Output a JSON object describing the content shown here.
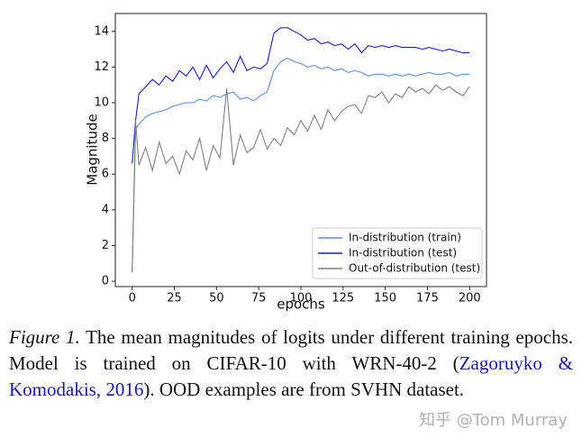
{
  "chart_data": {
    "type": "line",
    "xlabel": "epochs",
    "ylabel": "Magnitude",
    "x": [
      0,
      2,
      4,
      8,
      12,
      16,
      20,
      24,
      28,
      32,
      36,
      40,
      44,
      48,
      52,
      56,
      60,
      64,
      68,
      72,
      76,
      80,
      84,
      88,
      92,
      96,
      100,
      104,
      108,
      112,
      116,
      120,
      124,
      128,
      132,
      136,
      140,
      144,
      148,
      152,
      156,
      160,
      164,
      168,
      172,
      176,
      180,
      184,
      188,
      192,
      196,
      200
    ],
    "series": [
      {
        "name": "In-distribution (train)",
        "color": "#5b8fd8",
        "values": [
          0.5,
          8.5,
          8.8,
          9.2,
          9.4,
          9.5,
          9.6,
          9.8,
          9.9,
          10.0,
          10.0,
          10.2,
          10.1,
          10.4,
          10.3,
          10.5,
          10.6,
          10.2,
          10.3,
          10.1,
          10.4,
          10.6,
          11.8,
          12.3,
          12.5,
          12.3,
          12.2,
          12.0,
          12.1,
          11.9,
          12.0,
          11.8,
          11.9,
          11.7,
          11.8,
          11.7,
          11.5,
          11.6,
          11.6,
          11.5,
          11.6,
          11.5,
          11.6,
          11.5,
          11.6,
          11.7,
          11.6,
          11.6,
          11.7,
          11.5,
          11.6,
          11.6
        ]
      },
      {
        "name": "In-distribution (test)",
        "color": "#1c1cc8",
        "values": [
          6.6,
          9.0,
          10.5,
          10.9,
          11.3,
          11.0,
          11.5,
          11.2,
          11.8,
          11.5,
          12.0,
          11.3,
          12.1,
          11.4,
          11.9,
          12.3,
          11.7,
          12.6,
          11.8,
          12.0,
          11.9,
          12.2,
          13.9,
          14.2,
          14.2,
          14.0,
          13.8,
          13.5,
          13.6,
          13.3,
          13.4,
          13.2,
          13.3,
          13.0,
          13.3,
          12.8,
          13.2,
          13.1,
          13.2,
          13.1,
          13.2,
          13.1,
          13.1,
          13.1,
          13.0,
          13.1,
          13.0,
          12.9,
          13.0,
          12.9,
          12.8,
          12.8
        ]
      },
      {
        "name": "Out-of-distribution (test)",
        "color": "#808080",
        "values": [
          0.5,
          9.0,
          6.5,
          7.5,
          6.2,
          7.8,
          6.6,
          7.0,
          6.0,
          7.3,
          6.8,
          8.0,
          6.2,
          7.6,
          6.9,
          10.8,
          6.5,
          8.2,
          7.2,
          7.5,
          8.5,
          7.4,
          8.0,
          7.6,
          8.6,
          8.2,
          9.0,
          8.4,
          9.3,
          8.5,
          9.6,
          9.0,
          9.5,
          9.8,
          9.9,
          9.4,
          10.4,
          10.3,
          10.6,
          10.0,
          10.5,
          10.3,
          10.9,
          10.6,
          10.8,
          10.5,
          11.0,
          10.7,
          10.9,
          10.6,
          10.4,
          10.9
        ]
      }
    ],
    "xlim": [
      -10,
      210
    ],
    "ylim": [
      -0.3,
      15
    ],
    "xticks": [
      0,
      25,
      50,
      75,
      100,
      125,
      150,
      175,
      200
    ],
    "yticks": [
      0,
      2,
      4,
      6,
      8,
      10,
      12,
      14
    ],
    "legend": "lower right"
  },
  "caption": {
    "label": "Figure 1.",
    "text_before": "The mean magnitudes of logits under different training epochs.  Model is trained on CIFAR-10 with WRN-40-2 (",
    "citation": "Zagoruyko & Komodakis, 2016",
    "text_after": ").  OOD examples are from SVHN dataset."
  },
  "watermark": "知乎 @Tom Murray"
}
